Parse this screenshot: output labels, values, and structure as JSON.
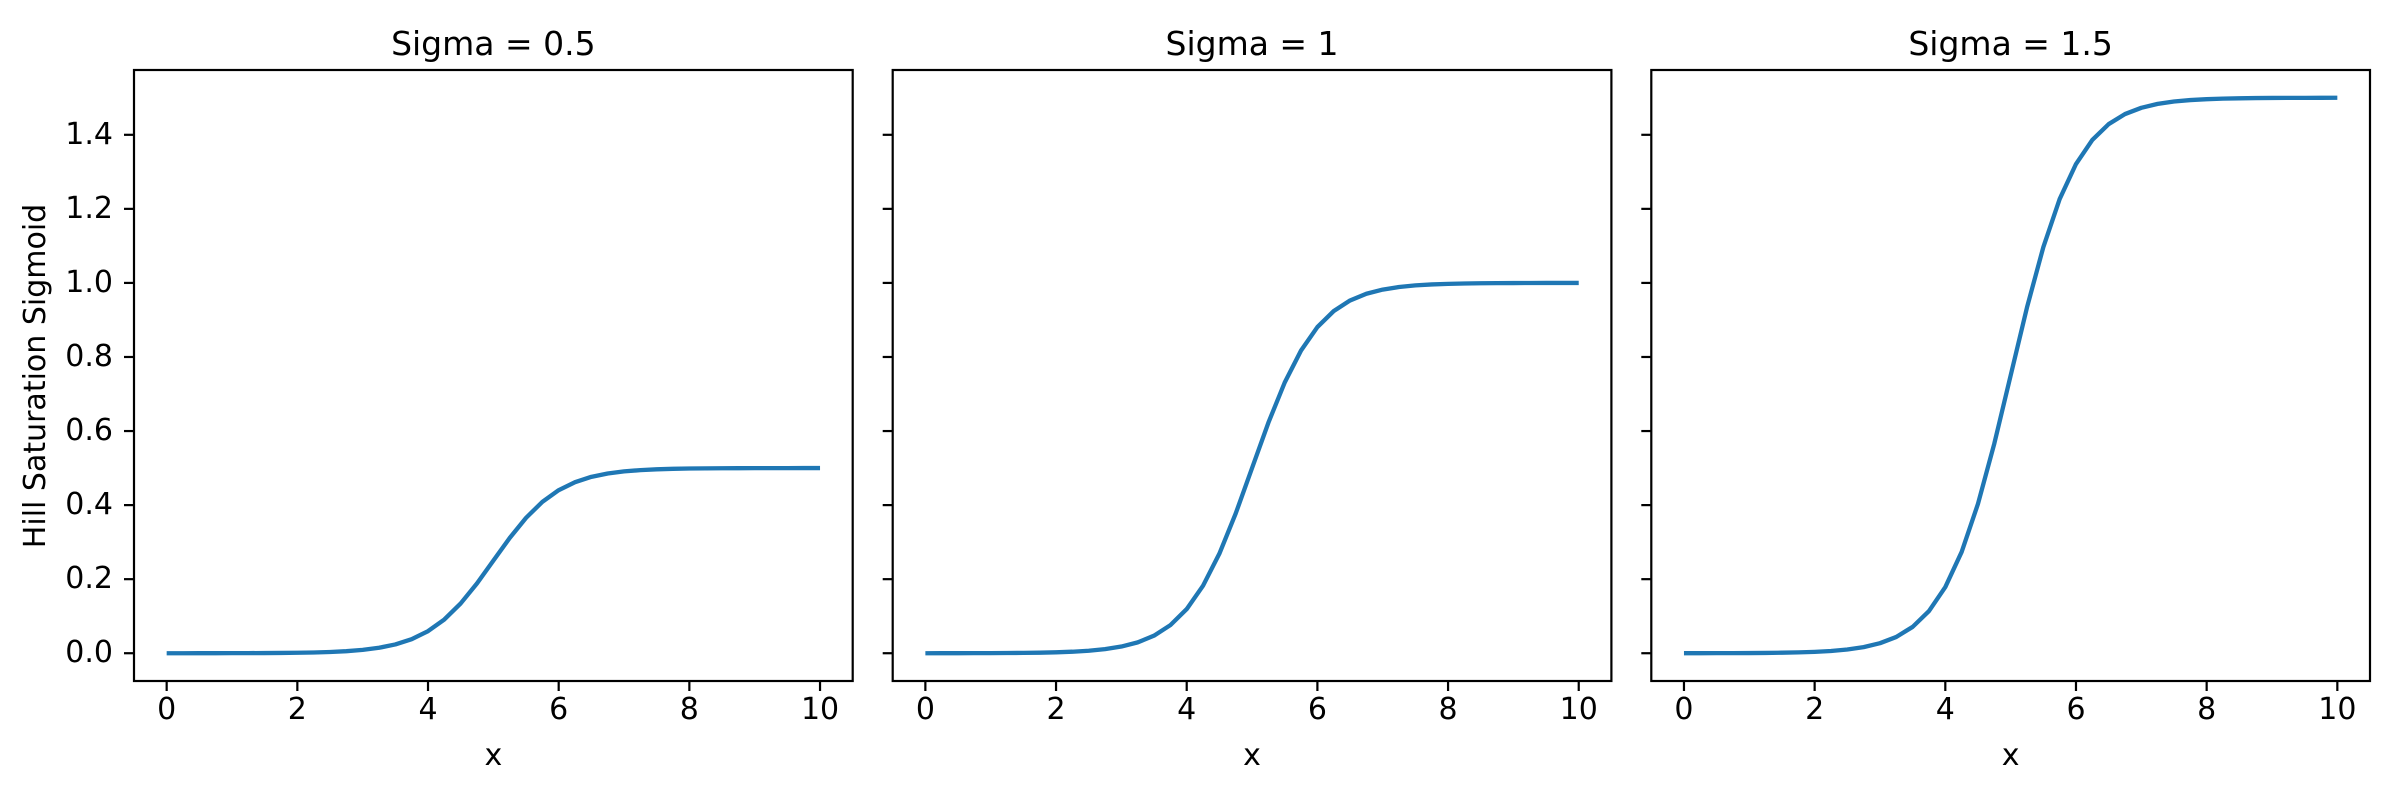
{
  "figure": {
    "background": "#ffffff",
    "line_color": "#1f77b4",
    "spine_color": "#000000",
    "text_color": "#000000"
  },
  "chart_data": [
    {
      "type": "line",
      "title": "Sigma = 0.5",
      "xlabel": "x",
      "ylabel": "Hill Saturation Sigmoid",
      "xlim": [
        -0.5,
        10.5
      ],
      "ylim": [
        -0.075,
        1.575
      ],
      "xticks": [
        "0",
        "2",
        "4",
        "6",
        "8",
        "10"
      ],
      "yticks": [
        "0.0",
        "0.2",
        "0.4",
        "0.6",
        "0.8",
        "1.0",
        "1.2",
        "1.4"
      ],
      "show_ytick_labels": true,
      "grid": false,
      "legend": null,
      "sigma": 0.5,
      "series": {
        "name": "hill-saturation-sigmoid",
        "x": [
          0,
          0.25,
          0.5,
          0.75,
          1,
          1.25,
          1.5,
          1.75,
          2,
          2.25,
          2.5,
          2.75,
          3,
          3.25,
          3.5,
          3.75,
          4,
          4.25,
          4.5,
          4.75,
          5,
          5.25,
          5.5,
          5.75,
          6,
          6.25,
          6.5,
          6.75,
          7,
          7.25,
          7.5,
          7.75,
          8,
          8.25,
          8.5,
          8.75,
          9,
          9.25,
          9.5,
          9.75,
          10
        ],
        "y": [
          0.0,
          0.0,
          0.0001,
          0.0001,
          0.0002,
          0.0003,
          0.0005,
          0.0008,
          0.0012,
          0.002,
          0.0034,
          0.0055,
          0.009,
          0.0147,
          0.0237,
          0.038,
          0.0596,
          0.0912,
          0.1345,
          0.1887,
          0.25,
          0.3112,
          0.3655,
          0.4088,
          0.4404,
          0.462,
          0.4763,
          0.4853,
          0.491,
          0.4945,
          0.4967,
          0.498,
          0.4988,
          0.4992,
          0.4995,
          0.4997,
          0.4998,
          0.4999,
          0.4999,
          0.5,
          0.5
        ]
      }
    },
    {
      "type": "line",
      "title": "Sigma = 1",
      "xlabel": "x",
      "ylabel": "",
      "xlim": [
        -0.5,
        10.5
      ],
      "ylim": [
        -0.075,
        1.575
      ],
      "xticks": [
        "0",
        "2",
        "4",
        "6",
        "8",
        "10"
      ],
      "yticks": [
        "0.0",
        "0.2",
        "0.4",
        "0.6",
        "0.8",
        "1.0",
        "1.2",
        "1.4"
      ],
      "show_ytick_labels": false,
      "grid": false,
      "legend": null,
      "sigma": 1,
      "series": {
        "name": "hill-saturation-sigmoid",
        "x": [
          0,
          0.25,
          0.5,
          0.75,
          1,
          1.25,
          1.5,
          1.75,
          2,
          2.25,
          2.5,
          2.75,
          3,
          3.25,
          3.5,
          3.75,
          4,
          4.25,
          4.5,
          4.75,
          5,
          5.25,
          5.5,
          5.75,
          6,
          6.25,
          6.5,
          6.75,
          7,
          7.25,
          7.5,
          7.75,
          8,
          8.25,
          8.5,
          8.75,
          9,
          9.25,
          9.5,
          9.75,
          10
        ],
        "y": [
          0.0,
          0.0001,
          0.0001,
          0.0002,
          0.0003,
          0.0006,
          0.0009,
          0.0015,
          0.0025,
          0.0041,
          0.0067,
          0.011,
          0.018,
          0.0293,
          0.0474,
          0.0759,
          0.1192,
          0.1824,
          0.2689,
          0.3775,
          0.5,
          0.6225,
          0.7311,
          0.8176,
          0.8808,
          0.9241,
          0.9526,
          0.9707,
          0.982,
          0.989,
          0.9933,
          0.9959,
          0.9975,
          0.9985,
          0.9991,
          0.9994,
          0.9997,
          0.9998,
          0.9999,
          0.9999,
          1.0
        ]
      }
    },
    {
      "type": "line",
      "title": "Sigma = 1.5",
      "xlabel": "x",
      "ylabel": "",
      "xlim": [
        -0.5,
        10.5
      ],
      "ylim": [
        -0.075,
        1.575
      ],
      "xticks": [
        "0",
        "2",
        "4",
        "6",
        "8",
        "10"
      ],
      "yticks": [
        "0.0",
        "0.2",
        "0.4",
        "0.6",
        "0.8",
        "1.0",
        "1.2",
        "1.4"
      ],
      "show_ytick_labels": false,
      "grid": false,
      "legend": null,
      "sigma": 1.5,
      "series": {
        "name": "hill-saturation-sigmoid",
        "x": [
          0,
          0.25,
          0.5,
          0.75,
          1,
          1.25,
          1.5,
          1.75,
          2,
          2.25,
          2.5,
          2.75,
          3,
          3.25,
          3.5,
          3.75,
          4,
          4.25,
          4.5,
          4.75,
          5,
          5.25,
          5.5,
          5.75,
          6,
          6.25,
          6.5,
          6.75,
          7,
          7.25,
          7.5,
          7.75,
          8,
          8.25,
          8.5,
          8.75,
          9,
          9.25,
          9.5,
          9.75,
          10
        ],
        "y": [
          0.0001,
          0.0001,
          0.0002,
          0.0003,
          0.0005,
          0.0008,
          0.0014,
          0.0022,
          0.0037,
          0.0061,
          0.01,
          0.0165,
          0.0271,
          0.044,
          0.0712,
          0.1138,
          0.1787,
          0.2736,
          0.4034,
          0.5663,
          0.75,
          0.9337,
          1.0966,
          1.2264,
          1.3211,
          1.3862,
          1.4288,
          1.456,
          1.4729,
          1.4835,
          1.4899,
          1.4938,
          1.4962,
          1.4977,
          1.4986,
          1.4992,
          1.4995,
          1.4997,
          1.4998,
          1.4999,
          1.5
        ]
      }
    }
  ]
}
